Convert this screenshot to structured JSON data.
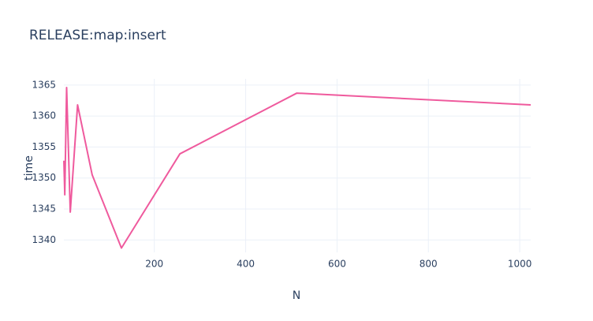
{
  "chart_data": {
    "type": "line",
    "title": "RELEASE:map:insert",
    "x_label": "N",
    "y_label": "time",
    "x": [
      2,
      4,
      8,
      16,
      32,
      64,
      128,
      256,
      512,
      1024
    ],
    "series": [
      {
        "name": "time",
        "color": "#ef5a9d",
        "values": [
          1352.8,
          1347.3,
          1364.6,
          1344.5,
          1361.8,
          1350.5,
          1338.7,
          1353.9,
          1363.7,
          1361.8
        ]
      }
    ],
    "xlim": [
      2,
      1024
    ],
    "xticks": [
      200,
      400,
      600,
      800,
      1000
    ],
    "ylim": [
      1338.0,
      1366.0
    ],
    "yticks": [
      1340,
      1345,
      1350,
      1355,
      1360,
      1365
    ],
    "grid": true
  }
}
